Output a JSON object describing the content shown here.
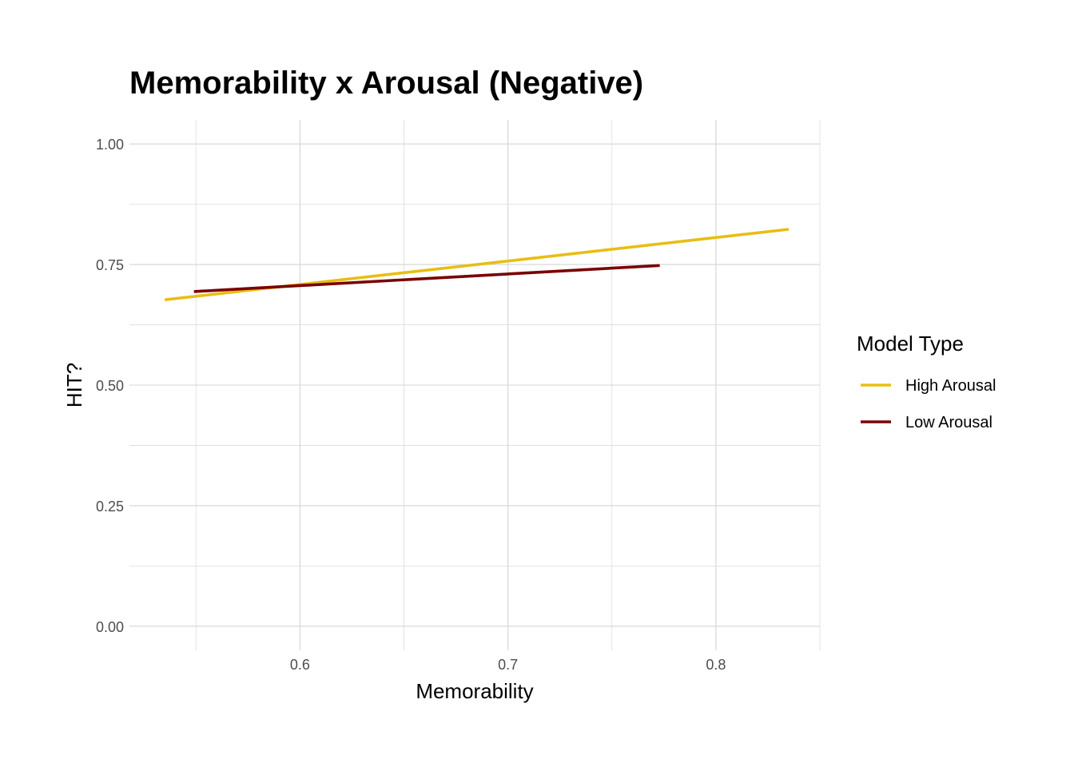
{
  "chart_data": {
    "type": "line",
    "title": "Memorability x Arousal (Negative)",
    "xlabel": "Memorability",
    "ylabel": "HIT?",
    "xlim": [
      0.518,
      0.85
    ],
    "ylim": [
      -0.05,
      1.05
    ],
    "x_ticks": [
      0.6,
      0.7,
      0.8
    ],
    "x_tick_labels": [
      "0.6",
      "0.7",
      "0.8"
    ],
    "y_ticks": [
      0.0,
      0.25,
      0.5,
      0.75,
      1.0
    ],
    "y_tick_labels": [
      "0.00",
      "0.25",
      "0.50",
      "0.75",
      "1.00"
    ],
    "grid": true,
    "legend": {
      "title": "Model Type",
      "position": "right"
    },
    "series": [
      {
        "name": "High Arousal",
        "color": "#E8BE14",
        "x": [
          0.535,
          0.835
        ],
        "y": [
          0.677,
          0.823
        ]
      },
      {
        "name": "Low Arousal",
        "color": "#7A0000",
        "x": [
          0.549,
          0.773
        ],
        "y": [
          0.694,
          0.748
        ]
      }
    ]
  }
}
